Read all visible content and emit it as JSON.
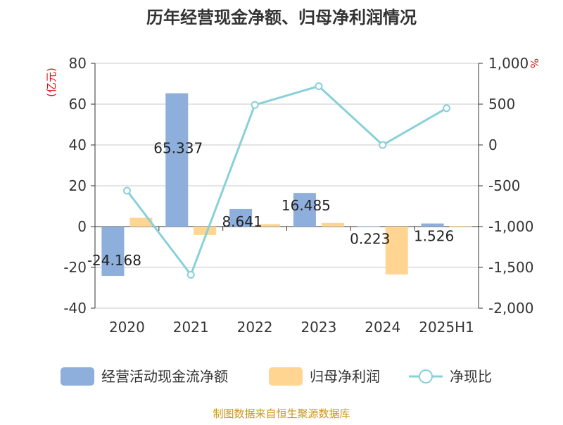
{
  "chart_data": {
    "type": "bar",
    "title": "历年经营现金净额、归母净利润情况",
    "categories": [
      "2020",
      "2021",
      "2022",
      "2023",
      "2024",
      "2025H1"
    ],
    "series": [
      {
        "name": "经营活动现金流净额",
        "kind": "bar",
        "axis": "left",
        "color": "#8eaedb",
        "values": [
          -24.168,
          65.337,
          8.641,
          16.485,
          0.223,
          1.526
        ]
      },
      {
        "name": "归母净利润",
        "kind": "bar",
        "axis": "left",
        "color": "#ffd591",
        "values": [
          4.3,
          -4.1,
          1.2,
          1.8,
          -23.5,
          0.3
        ]
      },
      {
        "name": "净现比",
        "kind": "line",
        "axis": "right",
        "color": "#88d1d8",
        "values": [
          -560,
          -1590,
          490,
          720,
          0,
          450
        ]
      }
    ],
    "data_labels": [
      "-24.168",
      "65.337",
      "8.641",
      "16.485",
      "0.223",
      "1.526"
    ],
    "y_left": {
      "unit_label": "(亿元)",
      "ylim": [
        -40,
        80
      ],
      "ticks": [
        80,
        60,
        40,
        20,
        0,
        -20,
        -40
      ],
      "tick_labels": [
        "80",
        "60",
        "40",
        "20",
        "0",
        "-20",
        "-40"
      ]
    },
    "y_right": {
      "unit_label": "%",
      "ylim": [
        -2000,
        1000
      ],
      "ticks": [
        1000,
        500,
        0,
        -500,
        -1000,
        -1500,
        -2000
      ],
      "tick_labels": [
        "1,000",
        "500",
        "0",
        "-500",
        "-1,000",
        "-1,500",
        "-2,000"
      ]
    },
    "grid": true,
    "legend_position": "bottom"
  },
  "source": "制图数据来自恒生聚源数据库"
}
